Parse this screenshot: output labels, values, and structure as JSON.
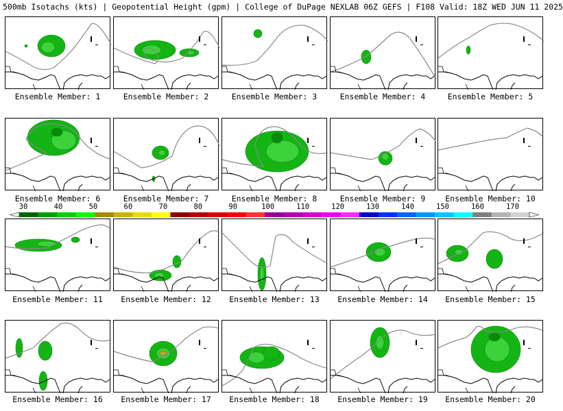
{
  "header": {
    "title": "500mb Isotachs (kts) | Geopotential Height (gpm) | College of DuPage NEXLAB   06Z GEFS | F108 Valid: 18Z WED JUN 11 2025"
  },
  "colors": {
    "coast": "#000000",
    "height_contour": "#888888",
    "green_dark": "#0a8a0a",
    "green_mid": "#14b414",
    "green_light": "#3cd23c",
    "orange_core": "#c8a032"
  },
  "members": [
    {
      "label": "Ensemble Member: 1"
    },
    {
      "label": "Ensemble Member: 2"
    },
    {
      "label": "Ensemble Member: 3"
    },
    {
      "label": "Ensemble Member: 4"
    },
    {
      "label": "Ensemble Member: 5"
    },
    {
      "label": "Ensemble Member: 6"
    },
    {
      "label": "Ensemble Member: 7"
    },
    {
      "label": "Ensemble Member: 8"
    },
    {
      "label": "Ensemble Member: 9"
    },
    {
      "label": "Ensemble Member: 10"
    },
    {
      "label": "Ensemble Member: 11"
    },
    {
      "label": "Ensemble Member: 12"
    },
    {
      "label": "Ensemble Member: 13"
    },
    {
      "label": "Ensemble Member: 14"
    },
    {
      "label": "Ensemble Member: 15"
    },
    {
      "label": "Ensemble Member: 16"
    },
    {
      "label": "Ensemble Member: 17"
    },
    {
      "label": "Ensemble Member: 18"
    },
    {
      "label": "Ensemble Member: 19"
    },
    {
      "label": "Ensemble Member: 20"
    }
  ],
  "colorbar": {
    "ticks": [
      "30",
      "40",
      "50",
      "60",
      "70",
      "80",
      "90",
      "100",
      "110",
      "120",
      "130",
      "140",
      "150",
      "160",
      "170"
    ],
    "colors": [
      "#006400",
      "#00a000",
      "#00d200",
      "#00ff00",
      "#a08c00",
      "#c8b400",
      "#e6dc00",
      "#ffff00",
      "#8c0000",
      "#b40000",
      "#dc0000",
      "#ff0000",
      "#ff3232",
      "#960096",
      "#b400b4",
      "#d200d2",
      "#f000f0",
      "#ff28ff",
      "#0000c8",
      "#0032ff",
      "#0064ff",
      "#0096ff",
      "#00c8ff",
      "#00ffff",
      "#808080",
      "#b4b4b4",
      "#d2d2d2"
    ]
  }
}
